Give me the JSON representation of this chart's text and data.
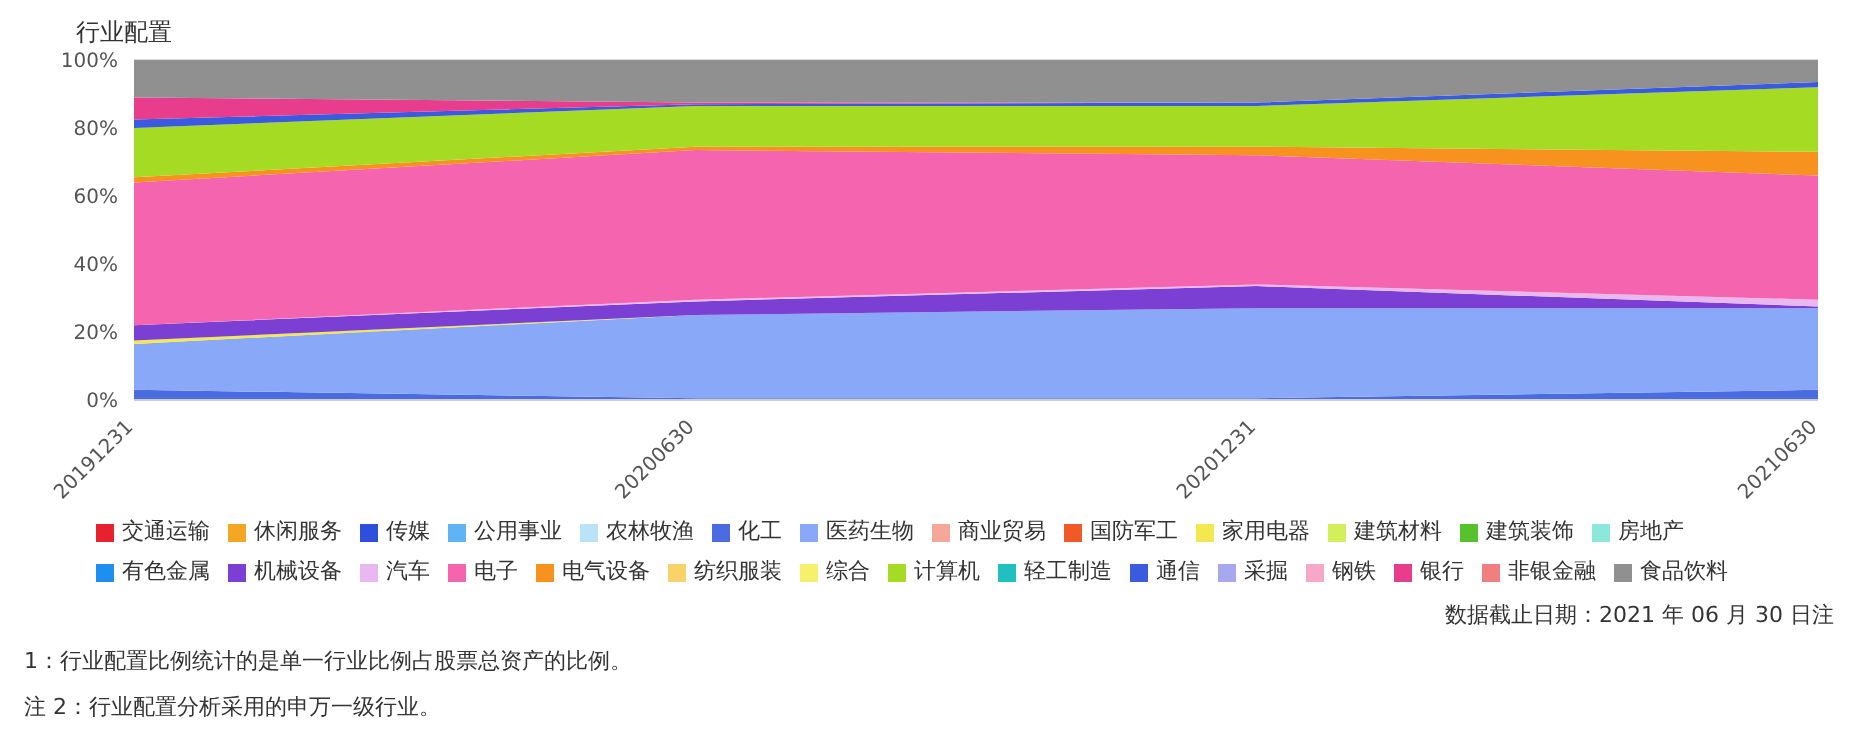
{
  "chart_data": {
    "type": "area",
    "stacked": true,
    "title": "行业配置",
    "categories": [
      "20191231",
      "20200630",
      "20201231",
      "20210630"
    ],
    "ylim": [
      0,
      100
    ],
    "yticks": [
      {
        "value": 0,
        "label": "0%"
      },
      {
        "value": 20,
        "label": "20%"
      },
      {
        "value": 40,
        "label": "40%"
      },
      {
        "value": 60,
        "label": "60%"
      },
      {
        "value": 80,
        "label": "80%"
      },
      {
        "value": 100,
        "label": "100%"
      }
    ],
    "grid": "y",
    "legend": "bottom",
    "series": [
      {
        "name": "交通运输",
        "color": "#e8212f",
        "values": [
          null,
          null,
          null,
          null
        ]
      },
      {
        "name": "休闲服务",
        "color": "#f5a623",
        "values": [
          null,
          null,
          null,
          null
        ]
      },
      {
        "name": "传媒",
        "color": "#2e4fd9",
        "values": [
          null,
          null,
          null,
          null
        ]
      },
      {
        "name": "公用事业",
        "color": "#5fb4f5",
        "values": [
          null,
          null,
          null,
          null
        ]
      },
      {
        "name": "农林牧渔",
        "color": "#b9e3f7",
        "values": [
          null,
          null,
          null,
          null
        ]
      },
      {
        "name": "化工",
        "color": "#4a6ce0",
        "values": [
          3,
          0.5,
          0.5,
          3
        ]
      },
      {
        "name": "医药生物",
        "color": "#8aa8f8",
        "values": [
          13.5,
          24.5,
          26.5,
          24
        ]
      },
      {
        "name": "商业贸易",
        "color": "#f5a89a",
        "values": [
          null,
          null,
          null,
          null
        ]
      },
      {
        "name": "国防军工",
        "color": "#f05a28",
        "values": [
          null,
          null,
          null,
          null
        ]
      },
      {
        "name": "家用电器",
        "color": "#f2e94e",
        "values": [
          1,
          0,
          0,
          0
        ]
      },
      {
        "name": "建筑材料",
        "color": "#d3ef5a",
        "values": [
          null,
          null,
          null,
          null
        ]
      },
      {
        "name": "建筑装饰",
        "color": "#56c22e",
        "values": [
          null,
          null,
          null,
          null
        ]
      },
      {
        "name": "房地产",
        "color": "#8ce8d8",
        "values": [
          null,
          null,
          null,
          null
        ]
      },
      {
        "name": "有色金属",
        "color": "#1e8ff0",
        "values": [
          null,
          null,
          null,
          null
        ]
      },
      {
        "name": "机械设备",
        "color": "#7b3fd4",
        "values": [
          4.5,
          4,
          6.5,
          0.5
        ]
      },
      {
        "name": "汽车",
        "color": "#e9b8f0",
        "values": [
          0,
          0.5,
          0.5,
          2
        ]
      },
      {
        "name": "电子",
        "color": "#f564ae",
        "values": [
          42,
          44,
          38,
          36.5
        ]
      },
      {
        "name": "电气设备",
        "color": "#f7921e",
        "values": [
          1.5,
          1,
          2.5,
          7
        ]
      },
      {
        "name": "纺织服装",
        "color": "#f7d36a",
        "values": [
          null,
          null,
          null,
          null
        ]
      },
      {
        "name": "综合",
        "color": "#f7f06a",
        "values": [
          null,
          null,
          null,
          null
        ]
      },
      {
        "name": "计算机",
        "color": "#a5dc23",
        "values": [
          14.5,
          12,
          12,
          19
        ]
      },
      {
        "name": "轻工制造",
        "color": "#20c0c0",
        "values": [
          null,
          null,
          null,
          null
        ]
      },
      {
        "name": "通信",
        "color": "#3a5be0",
        "values": [
          2.5,
          0.5,
          1,
          1.5
        ]
      },
      {
        "name": "采掘",
        "color": "#a8a8f0",
        "values": [
          null,
          null,
          null,
          null
        ]
      },
      {
        "name": "钢铁",
        "color": "#f5a8c8",
        "values": [
          null,
          null,
          null,
          null
        ]
      },
      {
        "name": "银行",
        "color": "#e83c8c",
        "values": [
          6.5,
          0.5,
          0,
          0
        ]
      },
      {
        "name": "非银金融",
        "color": "#f08080",
        "values": [
          null,
          null,
          null,
          null
        ]
      },
      {
        "name": "食品饮料",
        "color": "#909090",
        "values": [
          11,
          12.5,
          12.5,
          6.5
        ]
      }
    ],
    "annotations": [
      "数据截止日期：2021 年 06 月 30 日注",
      "1：行业配置比例统计的是单一行业比例占股票总资产的比例。",
      "注 2：行业配置分析采用的申万一级行业。"
    ]
  }
}
